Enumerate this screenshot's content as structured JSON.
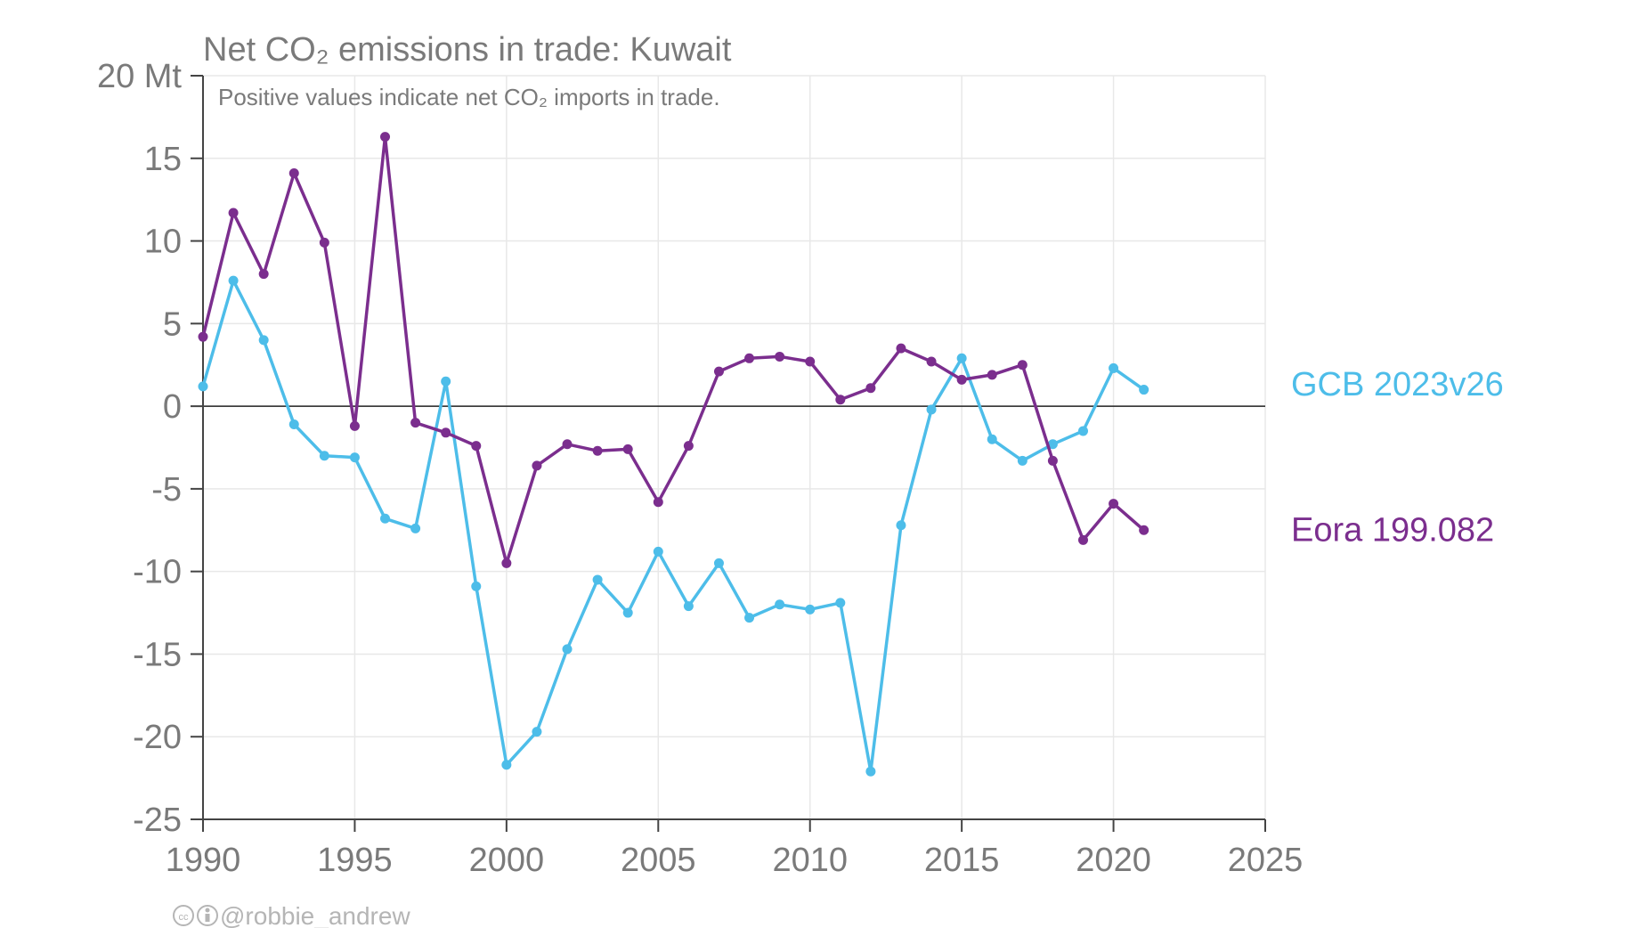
{
  "chart_data": {
    "type": "line",
    "title": "Net CO₂ emissions in trade: Kuwait",
    "subtitle": "Positive values indicate net CO₂ imports in trade.",
    "y_unit": "Mt",
    "xlim": [
      1990,
      2025
    ],
    "ylim": [
      -25,
      20
    ],
    "x_ticks": [
      1990,
      1995,
      2000,
      2005,
      2010,
      2015,
      2020,
      2025
    ],
    "y_ticks": [
      -25,
      -20,
      -15,
      -10,
      -5,
      0,
      5,
      10,
      15,
      20
    ],
    "y_tick_labels": [
      "-25",
      "-20",
      "-15",
      "-10",
      "-5",
      "0",
      "5",
      "10",
      "15",
      "20 Mt"
    ],
    "grid": true,
    "legend": "direct labels at right end of lines",
    "series": [
      {
        "name": "GCB 2023v26",
        "color": "#4dbde9",
        "x": [
          1990,
          1991,
          1992,
          1993,
          1994,
          1995,
          1996,
          1997,
          1998,
          1999,
          2000,
          2001,
          2002,
          2003,
          2004,
          2005,
          2006,
          2007,
          2008,
          2009,
          2010,
          2011,
          2012,
          2013,
          2014,
          2015,
          2016,
          2017,
          2018,
          2019,
          2020,
          2021
        ],
        "values": [
          1.2,
          7.6,
          4.0,
          -1.1,
          -3.0,
          -3.1,
          -6.8,
          -7.4,
          1.5,
          -10.9,
          -21.7,
          -19.7,
          -14.7,
          -10.5,
          -12.5,
          -8.8,
          -12.1,
          -9.5,
          -12.8,
          -12.0,
          -12.3,
          -11.9,
          -22.1,
          -7.2,
          -0.2,
          2.9,
          -2.0,
          -3.3,
          -2.3,
          -1.5,
          2.3,
          1.0
        ]
      },
      {
        "name": "Eora 199.082",
        "color": "#7b2e8e",
        "x": [
          1990,
          1991,
          1992,
          1993,
          1994,
          1995,
          1996,
          1997,
          1998,
          1999,
          2000,
          2001,
          2002,
          2003,
          2004,
          2005,
          2006,
          2007,
          2008,
          2009,
          2010,
          2011,
          2012,
          2013,
          2014,
          2015,
          2016,
          2017,
          2018,
          2019,
          2020,
          2021
        ],
        "values": [
          4.2,
          11.7,
          8.0,
          14.1,
          9.9,
          -1.2,
          16.3,
          -1.0,
          -1.6,
          -2.4,
          -9.5,
          -3.6,
          -2.3,
          -2.7,
          -2.6,
          -5.8,
          -2.4,
          2.1,
          2.9,
          3.0,
          2.7,
          0.4,
          1.1,
          3.5,
          2.7,
          1.6,
          1.9,
          2.5,
          -3.3,
          -8.1,
          -5.9,
          -7.5
        ]
      }
    ]
  },
  "credit": "@robbie_andrew",
  "colors": {
    "axis": "#444444",
    "grid": "#e8e8e8",
    "zero_line": "#222222",
    "text": "#7a7a7a"
  }
}
